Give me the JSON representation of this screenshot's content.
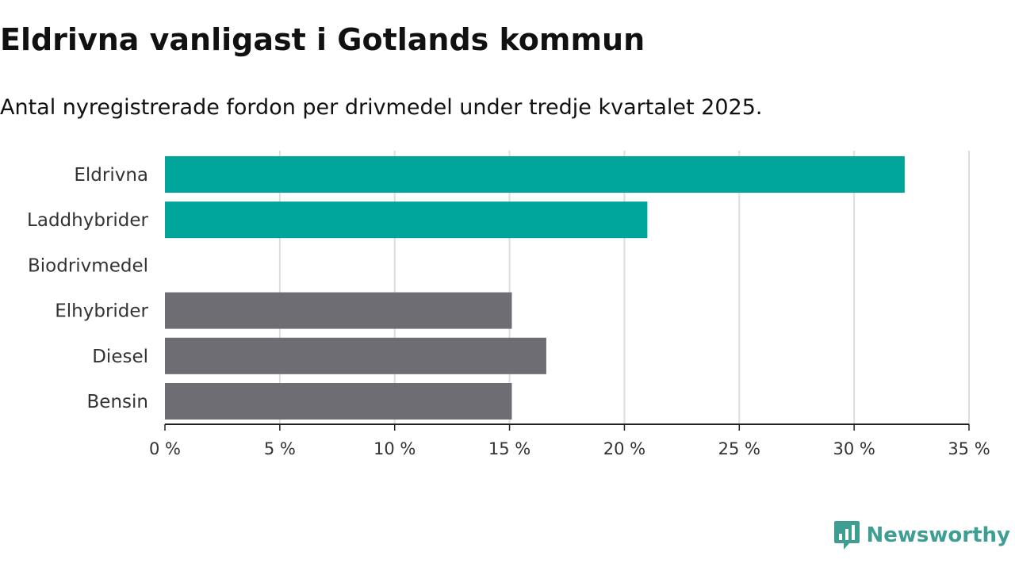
{
  "title": "Eldrivna vanligast i Gotlands kommun",
  "subtitle": "Antal nyregistrerade fordon per drivmedel under tredje kvartalet 2025.",
  "brand": "Newsworthy",
  "colors": {
    "highlight": "#00a599",
    "muted": "#6e6d73",
    "grid": "#dddddd",
    "axis": "#222222",
    "brand": "#3e9e94"
  },
  "chart_data": {
    "type": "bar",
    "orientation": "horizontal",
    "title": "Eldrivna vanligast i Gotlands kommun",
    "subtitle": "Antal nyregistrerade fordon per drivmedel under tredje kvartalet 2025.",
    "categories": [
      "Eldrivna",
      "Laddhybrider",
      "Biodrivmedel",
      "Elhybrider",
      "Diesel",
      "Bensin"
    ],
    "values": [
      32.2,
      21.0,
      0,
      15.1,
      16.6,
      15.1
    ],
    "highlighted": [
      true,
      true,
      false,
      false,
      false,
      false
    ],
    "unit": "%",
    "xlim": [
      0,
      35
    ],
    "ticks": [
      0,
      5,
      10,
      15,
      20,
      25,
      30,
      35
    ],
    "tick_labels": [
      "0 %",
      "5 %",
      "10 %",
      "15 %",
      "20 %",
      "25 %",
      "30 %",
      "35 %"
    ],
    "xlabel": "",
    "ylabel": "",
    "grid": true
  }
}
